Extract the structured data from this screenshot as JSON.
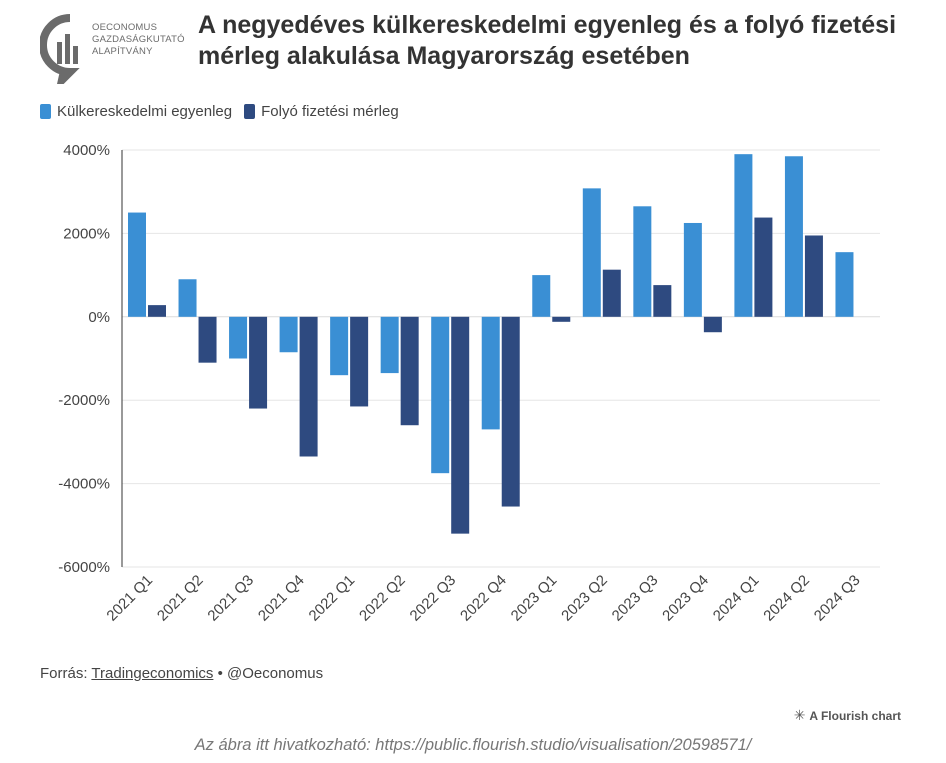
{
  "header": {
    "logo_lines": [
      "OECONOMUS",
      "GAZDASÁGKUTATÓ",
      "ALAPÍTVÁNY"
    ],
    "title": "A negyedéves külkereskedelmi egyenleg és a folyó fizetési mérleg alakulása Magyarország esetében"
  },
  "colors": {
    "series1": "#3a8fd4",
    "series2": "#2e4a80",
    "grid": "#e6e6e6",
    "axis": "#333333"
  },
  "chart_data": {
    "type": "bar",
    "categories": [
      "2021 Q1",
      "2021 Q2",
      "2021 Q3",
      "2021 Q4",
      "2022 Q1",
      "2022 Q2",
      "2022 Q3",
      "2022 Q4",
      "2023 Q1",
      "2023 Q2",
      "2023 Q3",
      "2023 Q4",
      "2024 Q1",
      "2024 Q2",
      "2024 Q3"
    ],
    "series": [
      {
        "name": "Külkereskedelmi egyenleg",
        "values": [
          2500,
          900,
          -1000,
          -850,
          -1400,
          -1350,
          -3750,
          -2700,
          1000,
          3080,
          2650,
          2250,
          3900,
          3850,
          1550
        ]
      },
      {
        "name": "Folyó fizetési mérleg",
        "values": [
          280,
          -1100,
          -2200,
          -3350,
          -2150,
          -2600,
          -5200,
          -4550,
          -120,
          1130,
          760,
          -370,
          2380,
          1950,
          null
        ]
      }
    ],
    "ylim": [
      -6000,
      4000
    ],
    "yticks": [
      4000,
      2000,
      0,
      -2000,
      -4000,
      -6000
    ],
    "ytick_labels": [
      "4000%",
      "2000%",
      "0%",
      "-2000%",
      "-4000%",
      "-6000%"
    ],
    "xlabel": "",
    "ylabel": "",
    "grid": true,
    "legend": "top-left"
  },
  "footer": {
    "source_prefix": "Forrás: ",
    "source_link": "Tradingeconomics",
    "source_suffix": " • @Oeconomus",
    "flourish_label": "A Flourish chart",
    "caption": "Az ábra itt hivatkozható: https://public.flourish.studio/visualisation/20598571/"
  }
}
